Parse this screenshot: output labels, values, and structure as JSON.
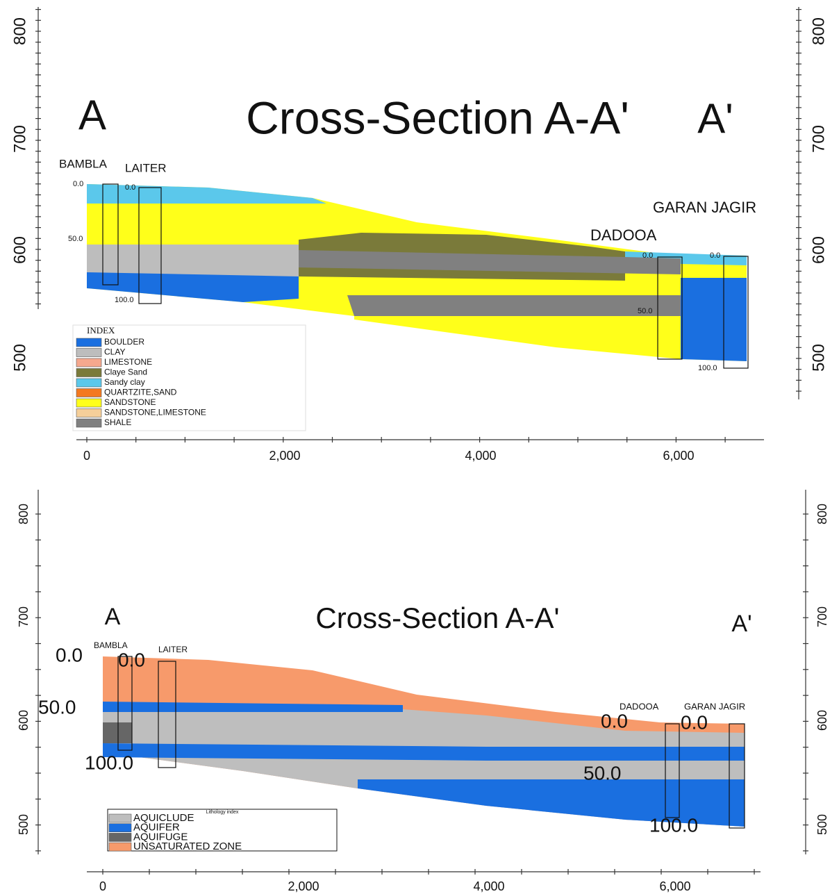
{
  "panels": [
    {
      "title": "Cross-Section A-A'",
      "left_marker": "A",
      "right_marker": "A'",
      "y_ticks": [
        "800",
        "700",
        "600",
        "500"
      ],
      "x_ticks": [
        "0",
        "2,000",
        "4,000",
        "6,000"
      ],
      "wells": [
        "BAMBLA",
        "LAITER",
        "GARAN JAGIR",
        "DADOOA"
      ],
      "depth_labels": [
        "0.0",
        "0.0",
        "50.0",
        "100.0",
        "0.0",
        "0.0",
        "50.0",
        "100.0"
      ],
      "legend": {
        "title": "INDEX",
        "items": [
          "BOULDER",
          "CLAY",
          "LIMESTONE",
          "Claye Sand",
          "Sandy clay",
          "QUARTZITE,SAND",
          "SANDSTONE",
          "SANDSTONE,LIMESTONE",
          "SHALE"
        ]
      }
    },
    {
      "title": "Cross-Section A-A'",
      "left_marker": "A",
      "right_marker": "A'",
      "y_ticks": [
        "800",
        "700",
        "600",
        "500"
      ],
      "x_ticks": [
        "0",
        "2,000",
        "4,000",
        "6,000"
      ],
      "wells": [
        "BAMBLA",
        "LAITER",
        "DADOOA",
        "GARAN JAGIR"
      ],
      "depth_labels": [
        "0.0",
        "0.0",
        "50.0",
        "100.0",
        "0.0",
        "0.0",
        "50.0",
        "100.0"
      ],
      "legend": {
        "title": "Lithology index",
        "items": [
          "AQUICLUDE",
          "AQUIFER",
          "AQUIFUGE",
          "UNSATURATED ZONE"
        ]
      }
    }
  ]
}
